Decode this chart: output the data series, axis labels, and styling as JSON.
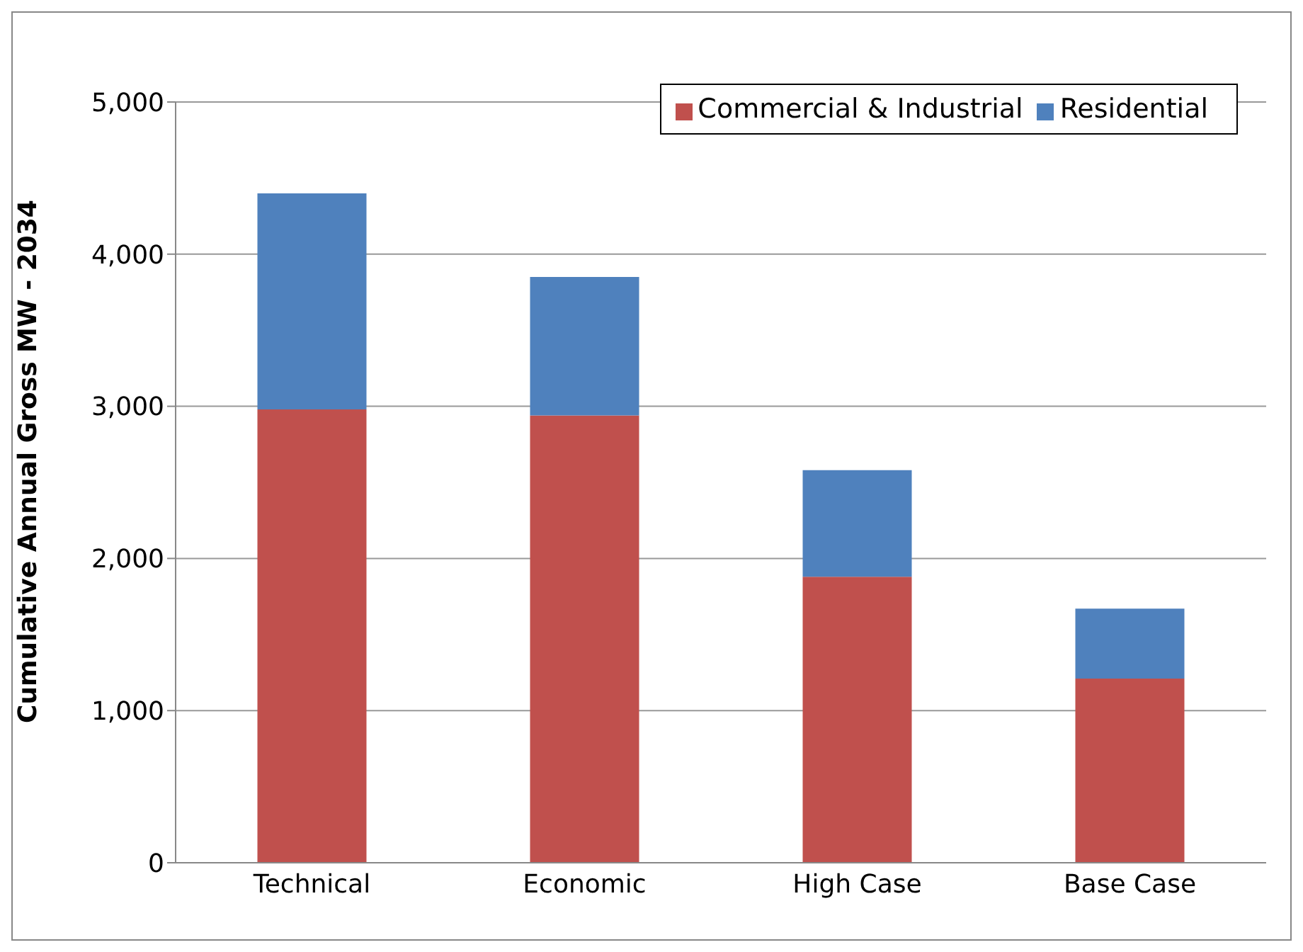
{
  "chart_data": {
    "type": "bar",
    "ylabel": "Cumulative Annual Gross MW - 2034",
    "categories": [
      "Technical",
      "Economic",
      "High Case",
      "Base Case"
    ],
    "stacked": true,
    "series": [
      {
        "name": "Commercial & Industrial",
        "color": "#c0504d",
        "values": [
          2980,
          2940,
          1880,
          1210
        ]
      },
      {
        "name": "Residential",
        "color": "#4f81bd",
        "values": [
          1420,
          910,
          700,
          460
        ]
      }
    ],
    "ylim": [
      0,
      5000
    ],
    "yticks": [
      {
        "value": 0,
        "label": "0"
      },
      {
        "value": 1000,
        "label": "1,000"
      },
      {
        "value": 2000,
        "label": "2,000"
      },
      {
        "value": 3000,
        "label": "3,000"
      },
      {
        "value": 4000,
        "label": "4,000"
      },
      {
        "value": 5000,
        "label": "5,000"
      }
    ],
    "grid": "y",
    "legend": "top right"
  }
}
